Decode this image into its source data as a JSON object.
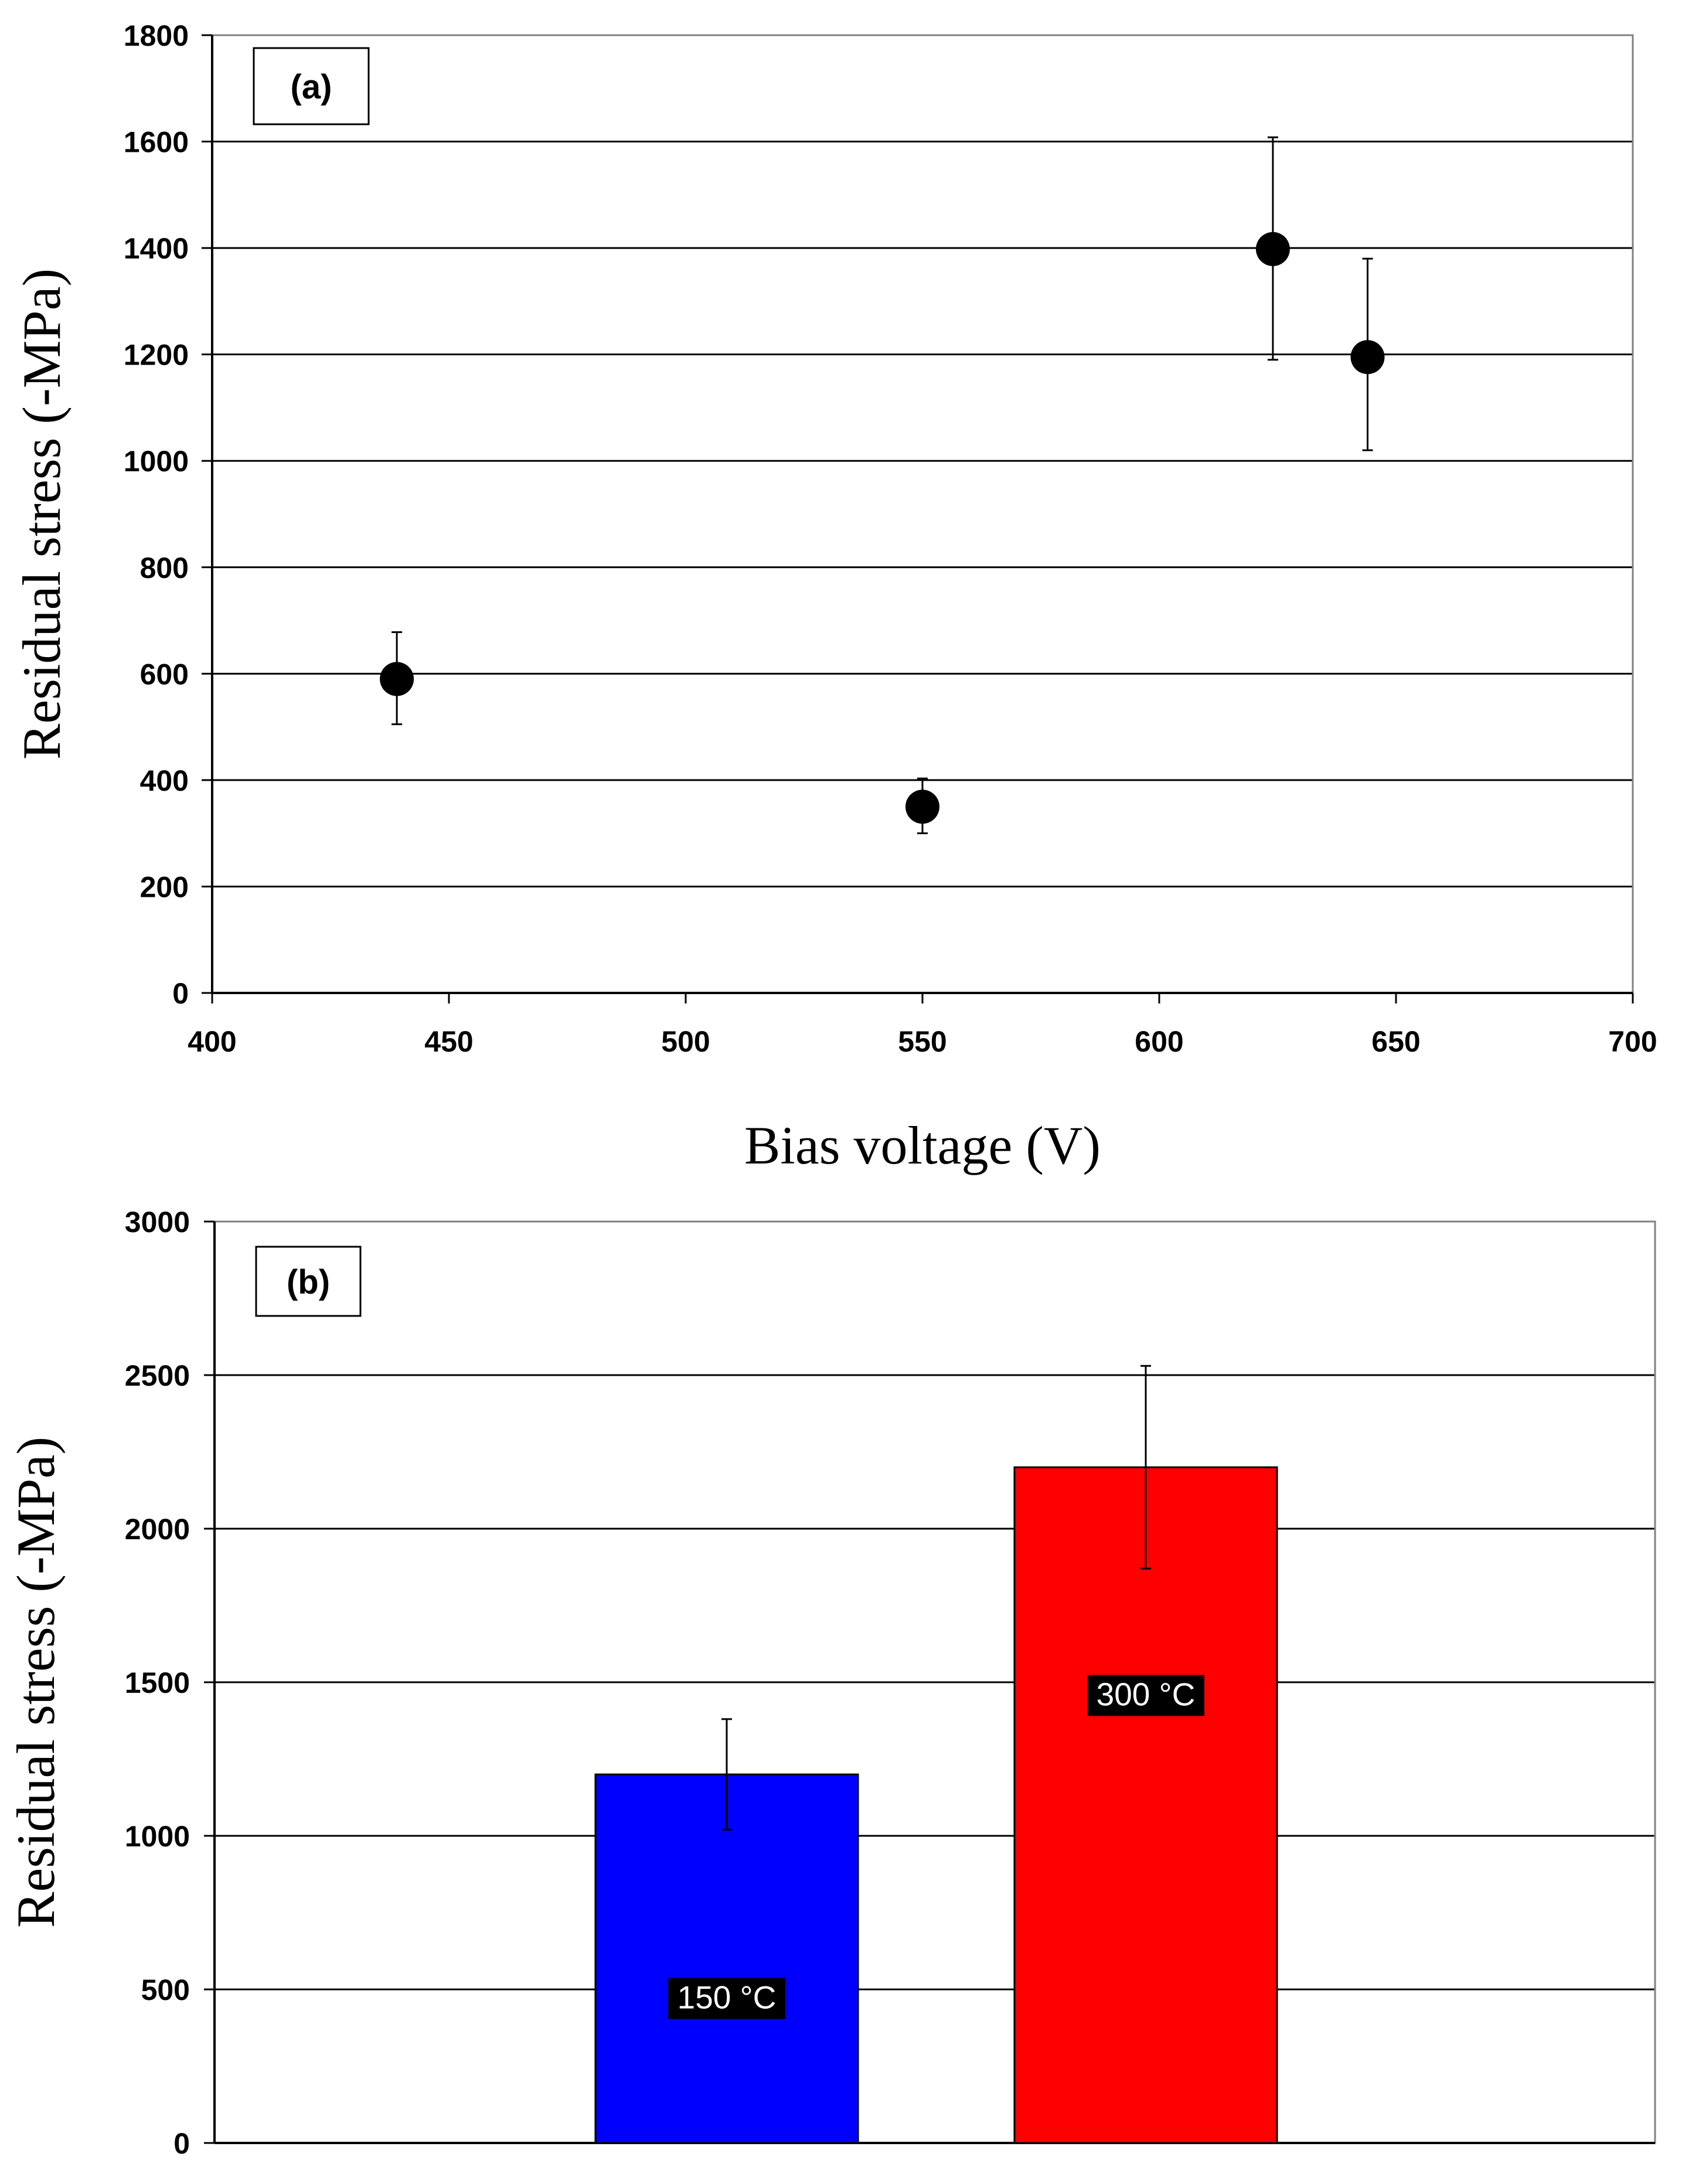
{
  "chart_data": [
    {
      "type": "scatter",
      "panel_label": "(a)",
      "xlabel": "Bias voltage (V)",
      "ylabel": "Residual stress (-MPa)",
      "xlim": [
        400,
        700
      ],
      "ylim": [
        0,
        1800
      ],
      "xticks": [
        "400",
        "450",
        "500",
        "550",
        "600",
        "650",
        "700"
      ],
      "yticks": [
        "0",
        "200",
        "400",
        "600",
        "800",
        "1000",
        "1200",
        "1400",
        "1600",
        "1800"
      ],
      "grid": "horizontal",
      "points": [
        {
          "x": 439,
          "y": 590,
          "err_low": 505,
          "err_high": 678
        },
        {
          "x": 550,
          "y": 350,
          "err_low": 300,
          "err_high": 403
        },
        {
          "x": 624,
          "y": 1398,
          "err_low": 1190,
          "err_high": 1608
        },
        {
          "x": 644,
          "y": 1195,
          "err_low": 1020,
          "err_high": 1380
        }
      ]
    },
    {
      "type": "bar",
      "panel_label": "(b)",
      "xlabel": "",
      "ylabel": "Residual stress (-MPa)",
      "ylim": [
        0,
        3000
      ],
      "yticks": [
        "0",
        "500",
        "1000",
        "1500",
        "2000",
        "2500",
        "3000"
      ],
      "grid": "horizontal",
      "categories": [
        "150 °C",
        "300 °C"
      ],
      "values": [
        1200,
        2200
      ],
      "errors": [
        180,
        330
      ],
      "colors": [
        "#0000ff",
        "#ff0000"
      ]
    }
  ]
}
